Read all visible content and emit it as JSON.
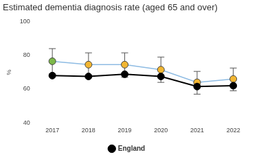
{
  "chart_data": {
    "type": "line",
    "title": "Estimated dementia diagnosis rate (aged 65 and over)",
    "categories": [
      "2017",
      "2018",
      "2019",
      "2020",
      "2021",
      "2022"
    ],
    "series": [
      {
        "color": "#8dbbe3",
        "colors": [
          "#7cb84a",
          "#f2b632",
          "#f2b632",
          "#f2b632",
          "#f2b632",
          "#f2b632"
        ],
        "marker": "circle",
        "values": [
          76.5,
          74.5,
          74.5,
          71.5,
          64,
          66
        ],
        "lower": [
          69,
          67,
          67,
          64,
          57,
          59
        ],
        "upper": [
          84,
          81.5,
          81.5,
          79,
          70.5,
          72.5
        ]
      },
      {
        "name": "England",
        "color": "#000000",
        "marker": "circle",
        "values": [
          68,
          67.5,
          68.8,
          67.5,
          61.5,
          62
        ]
      }
    ],
    "ylabel": "%",
    "ylim": [
      40,
      100
    ],
    "yticks": [
      40,
      60,
      80,
      100
    ],
    "grid": false,
    "legend": "bottom"
  }
}
